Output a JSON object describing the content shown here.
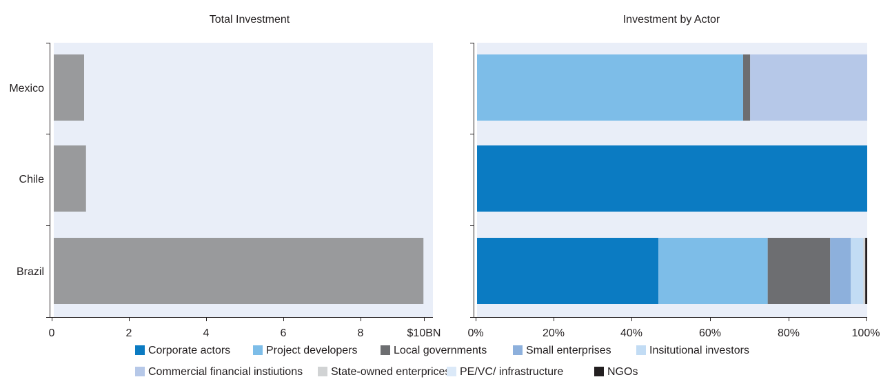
{
  "chart_data": [
    {
      "type": "bar",
      "orientation": "horizontal",
      "title": "Total Investment",
      "categories": [
        "Mexico",
        "Chile",
        "Brazil"
      ],
      "values": [
        0.8,
        0.85,
        9.75
      ],
      "xlim": [
        0,
        10
      ],
      "xticks": [
        "0",
        "2",
        "4",
        "6",
        "8",
        "$10BN"
      ],
      "bar_color": "#999a9c",
      "background": "#e9eef8"
    },
    {
      "type": "bar",
      "orientation": "horizontal",
      "stacked": true,
      "title": "Investment by Actor",
      "categories": [
        "Mexico",
        "Chile",
        "Brazil"
      ],
      "xlim": [
        0,
        100
      ],
      "xticks": [
        "0%",
        "20%",
        "40%",
        "60%",
        "80%",
        "100%"
      ],
      "background": "#e9eef8",
      "series": [
        {
          "name": "Corporate actors",
          "color": "#0b7bc2",
          "values": [
            0,
            100,
            46.5
          ]
        },
        {
          "name": "Project developers",
          "color": "#7dbde8",
          "values": [
            68.2,
            0,
            28
          ]
        },
        {
          "name": "Local governments",
          "color": "#6d6e71",
          "values": [
            1.8,
            0,
            16
          ]
        },
        {
          "name": "Small enterprises",
          "color": "#8db0dc",
          "values": [
            0,
            0,
            5.3
          ]
        },
        {
          "name": "Insitutional investors",
          "color": "#c2dcf4",
          "values": [
            0,
            0,
            3.2
          ]
        },
        {
          "name": "Commercial financial instiutions",
          "color": "#b6c8e8",
          "values": [
            30,
            0,
            0
          ]
        },
        {
          "name": "State-owned enterprices",
          "color": "#d1d3d4",
          "values": [
            0,
            0,
            0.5
          ]
        },
        {
          "name": "PE/VC/ infrastructure",
          "color": "#dbe9f8",
          "values": [
            0,
            0,
            0
          ]
        },
        {
          "name": "NGOs",
          "color": "#231f20",
          "values": [
            0,
            0,
            0.5
          ]
        }
      ],
      "legend": {
        "position": "bottom",
        "rows": [
          [
            "Corporate actors",
            "Project developers",
            "Local governments",
            "Small enterprises",
            "Insitutional investors"
          ],
          [
            "Commercial financial instiutions",
            "State-owned enterprices",
            "PE/VC/ infrastructure",
            "NGOs"
          ]
        ]
      }
    }
  ]
}
